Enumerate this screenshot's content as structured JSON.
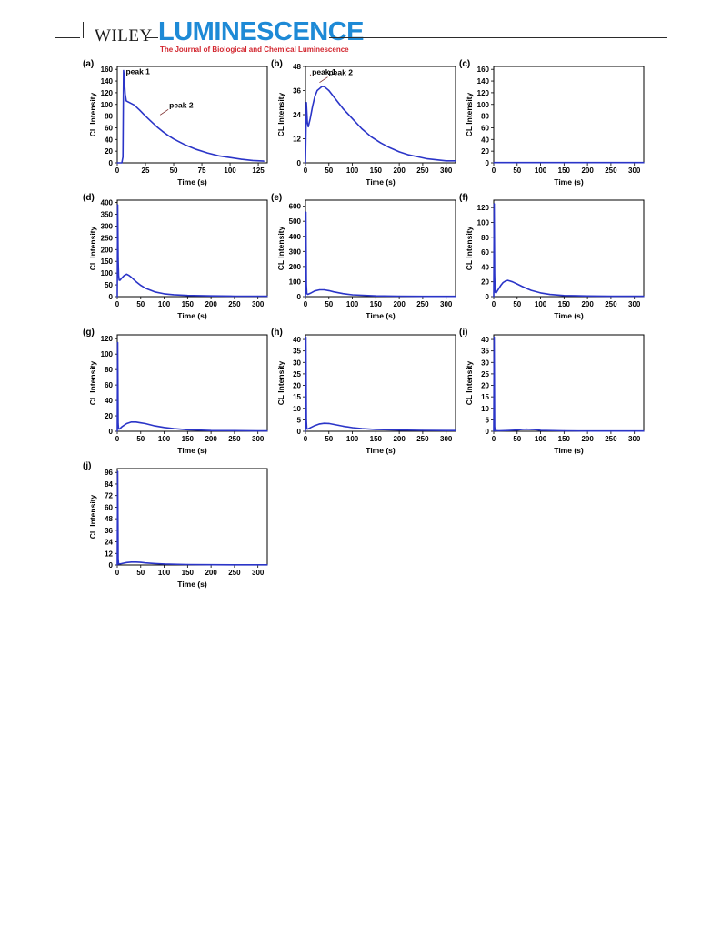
{
  "header": {
    "publisher": "WILEY",
    "journal": "LUMINESCENCE",
    "subtitle": "The Journal of Biological and Chemical Luminescence",
    "colors": {
      "journal": "#1e8ad6",
      "subtitle": "#d2262f"
    }
  },
  "chart_data": [
    {
      "id": "a",
      "tag": "(a)",
      "type": "line",
      "xlabel": "Time (s)",
      "ylabel": "CL Intensity",
      "xlim": [
        0,
        133
      ],
      "ylim": [
        0,
        165
      ],
      "xticks": [
        0,
        25,
        50,
        75,
        100,
        125
      ],
      "yticks": [
        0,
        20,
        40,
        60,
        80,
        100,
        120,
        140,
        160
      ],
      "annotations": [
        {
          "text": "peak 1",
          "x": 6,
          "y": 152
        },
        {
          "text": "peak 2",
          "x": 38,
          "y": 82
        }
      ],
      "series": [
        {
          "color": "#2b35c8",
          "x": [
            0,
            4,
            5,
            5.6,
            6,
            7,
            8,
            10,
            15,
            20,
            25,
            30,
            35,
            40,
            45,
            50,
            55,
            60,
            70,
            80,
            90,
            100,
            110,
            120,
            130
          ],
          "y": [
            0,
            0,
            10,
            158,
            150,
            118,
            106,
            104,
            99,
            90,
            80,
            71,
            62,
            54,
            47,
            41,
            36,
            31,
            23,
            17,
            12,
            9,
            6,
            4,
            3
          ]
        }
      ]
    },
    {
      "id": "b",
      "tag": "(b)",
      "type": "line",
      "xlabel": "Time (s)",
      "ylabel": "CL Intensity",
      "xlim": [
        0,
        320
      ],
      "ylim": [
        0,
        48
      ],
      "xticks": [
        0,
        50,
        100,
        150,
        200,
        250,
        300
      ],
      "yticks": [
        0,
        12,
        24,
        36,
        48
      ],
      "annotations": [
        {
          "text": "peak 1",
          "x": 10,
          "y": 44
        },
        {
          "text": "peak 2",
          "x": 30,
          "y": 40
        }
      ],
      "series": [
        {
          "color": "#2b35c8",
          "x": [
            0,
            2,
            4,
            6,
            10,
            15,
            20,
            25,
            30,
            35,
            40,
            45,
            50,
            60,
            70,
            80,
            100,
            120,
            140,
            160,
            180,
            200,
            220,
            240,
            260,
            280,
            300,
            320
          ],
          "y": [
            0,
            30,
            20,
            18,
            22,
            28,
            33,
            36,
            37,
            38,
            38,
            37,
            36,
            33,
            30,
            27,
            22,
            17,
            13,
            10,
            7.5,
            5.5,
            4,
            3,
            2,
            1.5,
            1,
            1
          ]
        }
      ]
    },
    {
      "id": "c",
      "tag": "(c)",
      "type": "line",
      "xlabel": "Time (s)",
      "ylabel": "CL Intensity",
      "xlim": [
        0,
        320
      ],
      "ylim": [
        0,
        165
      ],
      "xticks": [
        0,
        50,
        100,
        150,
        200,
        250,
        300
      ],
      "yticks": [
        0,
        20,
        40,
        60,
        80,
        100,
        120,
        140,
        160
      ],
      "annotations": [],
      "series": [
        {
          "color": "#2b35c8",
          "x": [
            0,
            320
          ],
          "y": [
            0.5,
            0.5
          ]
        }
      ]
    },
    {
      "id": "d",
      "tag": "(d)",
      "type": "line",
      "xlabel": "Time (s)",
      "ylabel": "CL Intensity",
      "xlim": [
        0,
        320
      ],
      "ylim": [
        0,
        410
      ],
      "xticks": [
        0,
        50,
        100,
        150,
        200,
        250,
        300
      ],
      "yticks": [
        0,
        50,
        100,
        150,
        200,
        250,
        300,
        350,
        400
      ],
      "annotations": [],
      "series": [
        {
          "color": "#2b35c8",
          "x": [
            0,
            1,
            2,
            3,
            4,
            6,
            10,
            15,
            20,
            25,
            30,
            40,
            50,
            60,
            80,
            100,
            120,
            150,
            200,
            250,
            300,
            320
          ],
          "y": [
            0,
            390,
            160,
            90,
            70,
            70,
            80,
            90,
            95,
            90,
            82,
            64,
            48,
            36,
            20,
            12,
            8,
            5,
            3,
            2,
            2,
            2
          ]
        }
      ]
    },
    {
      "id": "e",
      "tag": "(e)",
      "type": "line",
      "xlabel": "Time (s)",
      "ylabel": "CL Intensity",
      "xlim": [
        0,
        320
      ],
      "ylim": [
        0,
        640
      ],
      "xticks": [
        0,
        50,
        100,
        150,
        200,
        250,
        300
      ],
      "yticks": [
        0,
        100,
        200,
        300,
        400,
        500,
        600
      ],
      "annotations": [],
      "series": [
        {
          "color": "#2b35c8",
          "x": [
            0,
            1,
            2,
            3,
            5,
            10,
            20,
            30,
            40,
            50,
            60,
            80,
            100,
            150,
            200,
            250,
            300,
            320
          ],
          "y": [
            0,
            560,
            80,
            20,
            15,
            22,
            38,
            45,
            45,
            40,
            32,
            20,
            12,
            5,
            3,
            2,
            2,
            2
          ]
        }
      ]
    },
    {
      "id": "f",
      "tag": "(f)",
      "type": "line",
      "xlabel": "Time (s)",
      "ylabel": "CL Intensity",
      "xlim": [
        0,
        320
      ],
      "ylim": [
        0,
        130
      ],
      "xticks": [
        0,
        50,
        100,
        150,
        200,
        250,
        300
      ],
      "yticks": [
        0,
        20,
        40,
        60,
        80,
        100,
        120
      ],
      "annotations": [],
      "series": [
        {
          "color": "#2b35c8",
          "x": [
            0,
            1,
            2,
            3,
            5,
            10,
            15,
            20,
            25,
            30,
            35,
            40,
            50,
            60,
            70,
            80,
            100,
            120,
            150,
            200,
            250,
            300,
            320
          ],
          "y": [
            0,
            125,
            30,
            6,
            5,
            10,
            15,
            19,
            21,
            22,
            21,
            20,
            17,
            14,
            11,
            8.5,
            5,
            3,
            1.5,
            0.8,
            0.5,
            0.5,
            0.5
          ]
        }
      ]
    },
    {
      "id": "g",
      "tag": "(g)",
      "type": "line",
      "xlabel": "Time (s)",
      "ylabel": "CL Intensity",
      "xlim": [
        0,
        320
      ],
      "ylim": [
        0,
        125
      ],
      "xticks": [
        0,
        50,
        100,
        150,
        200,
        250,
        300
      ],
      "yticks": [
        0,
        20,
        40,
        60,
        80,
        100,
        120
      ],
      "annotations": [],
      "series": [
        {
          "color": "#2b35c8",
          "x": [
            0,
            1,
            2,
            3,
            5,
            10,
            20,
            30,
            40,
            50,
            60,
            80,
            100,
            120,
            150,
            200,
            250,
            300,
            320
          ],
          "y": [
            0,
            115,
            10,
            3,
            3,
            6,
            10,
            12,
            12,
            11,
            10,
            7,
            5,
            3.5,
            2,
            1,
            0.8,
            0.5,
            0.5
          ]
        }
      ]
    },
    {
      "id": "h",
      "tag": "(h)",
      "type": "line",
      "xlabel": "Time (s)",
      "ylabel": "CL Intensity",
      "xlim": [
        0,
        320
      ],
      "ylim": [
        0,
        42
      ],
      "xticks": [
        0,
        50,
        100,
        150,
        200,
        250,
        300
      ],
      "yticks": [
        0,
        5,
        10,
        15,
        20,
        25,
        30,
        35,
        40
      ],
      "annotations": [],
      "series": [
        {
          "color": "#2b35c8",
          "x": [
            0,
            1,
            2,
            3,
            5,
            10,
            20,
            30,
            40,
            50,
            60,
            70,
            80,
            100,
            120,
            150,
            200,
            250,
            300,
            320
          ],
          "y": [
            0,
            41,
            5,
            1,
            1,
            1.5,
            2.5,
            3.2,
            3.5,
            3.4,
            3,
            2.6,
            2.2,
            1.6,
            1.2,
            0.8,
            0.5,
            0.4,
            0.3,
            0.3
          ]
        }
      ]
    },
    {
      "id": "i",
      "tag": "(i)",
      "type": "line",
      "xlabel": "Time (s)",
      "ylabel": "CL Intensity",
      "xlim": [
        0,
        320
      ],
      "ylim": [
        0,
        42
      ],
      "xticks": [
        0,
        50,
        100,
        150,
        200,
        250,
        300
      ],
      "yticks": [
        0,
        5,
        10,
        15,
        20,
        25,
        30,
        35,
        40
      ],
      "annotations": [],
      "series": [
        {
          "color": "#2b35c8",
          "x": [
            0,
            1,
            2,
            3,
            10,
            30,
            50,
            60,
            70,
            80,
            90,
            100,
            150,
            200,
            250,
            300,
            320
          ],
          "y": [
            0,
            41,
            2,
            0.3,
            0.2,
            0.3,
            0.5,
            0.8,
            0.9,
            0.8,
            0.7,
            0.4,
            0.2,
            0.1,
            0.1,
            0.1,
            0.1
          ]
        }
      ]
    },
    {
      "id": "j",
      "tag": "(j)",
      "type": "line",
      "xlabel": "Time (s)",
      "ylabel": "CL Intensity",
      "xlim": [
        0,
        320
      ],
      "ylim": [
        0,
        100
      ],
      "xticks": [
        0,
        50,
        100,
        150,
        200,
        250,
        300
      ],
      "yticks": [
        0,
        12,
        24,
        36,
        48,
        60,
        72,
        84,
        96
      ],
      "annotations": [],
      "series": [
        {
          "color": "#2b35c8",
          "x": [
            0,
            1,
            2,
            3,
            5,
            10,
            20,
            30,
            40,
            50,
            60,
            80,
            100,
            150,
            200,
            250,
            300,
            320
          ],
          "y": [
            0,
            97,
            6,
            1,
            1,
            1.5,
            2.5,
            3,
            3,
            2.7,
            2.2,
            1.5,
            1,
            0.5,
            0.3,
            0.2,
            0.2,
            0.2
          ]
        }
      ]
    }
  ]
}
